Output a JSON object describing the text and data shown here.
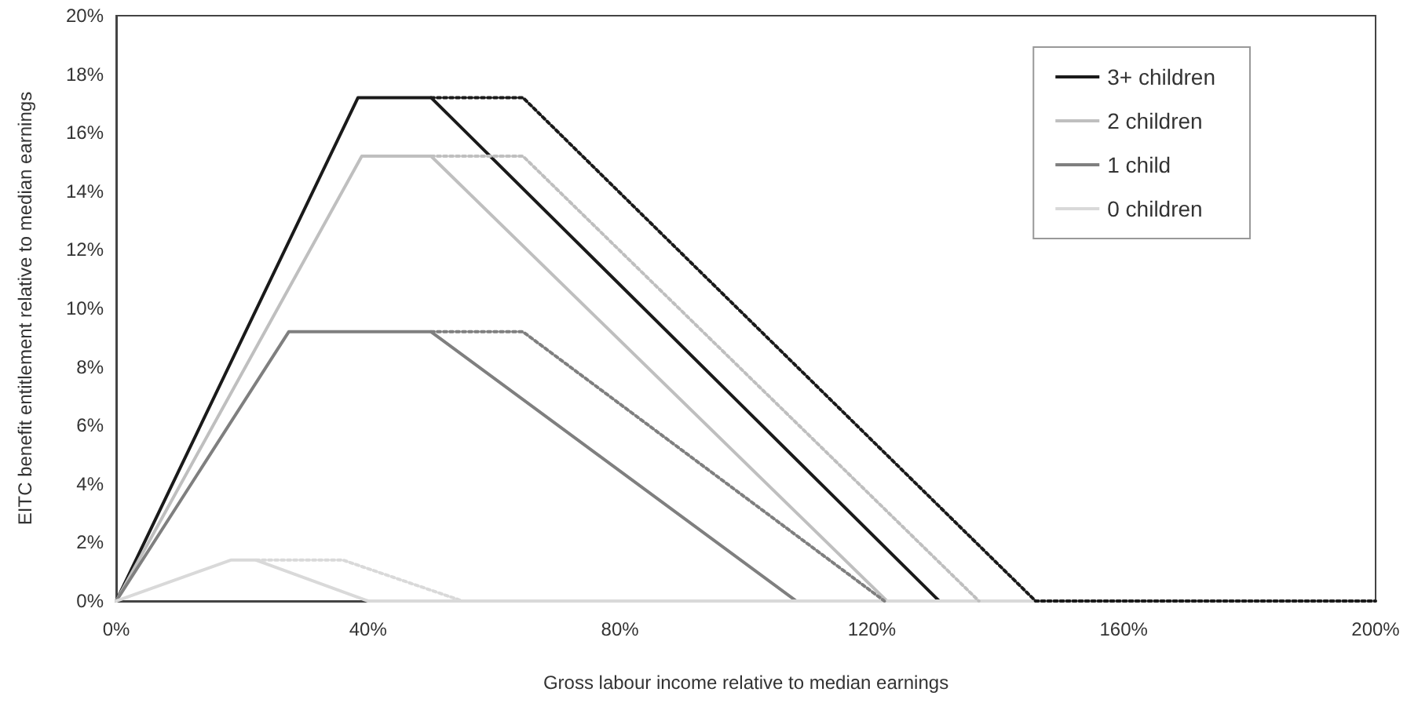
{
  "chart_data": {
    "type": "line",
    "xlabel": "Gross labour income relative to median earnings",
    "ylabel": "EITC benefit entitlement relative to median earnings",
    "xlim": [
      0,
      200
    ],
    "xticks": [
      {
        "value": 0,
        "label": "0%"
      },
      {
        "value": 40,
        "label": "40%"
      },
      {
        "value": 80,
        "label": "80%"
      },
      {
        "value": 120,
        "label": "120%"
      },
      {
        "value": 160,
        "label": "160%"
      },
      {
        "value": 200,
        "label": "200%"
      }
    ],
    "ylim": [
      0,
      20
    ],
    "yticks": [
      {
        "value": 0,
        "label": "0%"
      },
      {
        "value": 2,
        "label": "2%"
      },
      {
        "value": 4,
        "label": "4%"
      },
      {
        "value": 6,
        "label": "6%"
      },
      {
        "value": 8,
        "label": "8%"
      },
      {
        "value": 10,
        "label": "10%"
      },
      {
        "value": 12,
        "label": "12%"
      },
      {
        "value": 14,
        "label": "14%"
      },
      {
        "value": 16,
        "label": "16%"
      },
      {
        "value": 18,
        "label": "18%"
      },
      {
        "value": 20,
        "label": "20%"
      }
    ],
    "grid": false,
    "legend": "top right",
    "marker": "none",
    "line_style": "solid",
    "series": [
      {
        "name": "3+ children",
        "color": "#1a1a1a",
        "x": [
          0,
          38.4,
          50,
          130.7
        ],
        "values": [
          0,
          17.2,
          17.2,
          0
        ]
      },
      {
        "name": "2 children",
        "color": "#bfbfbf",
        "x": [
          0,
          39,
          50,
          122.4
        ],
        "values": [
          0,
          15.2,
          15.2,
          0
        ]
      },
      {
        "name": "1 child",
        "color": "#7f7f7f",
        "x": [
          0,
          27.4,
          50,
          108
        ],
        "values": [
          0,
          9.2,
          9.2,
          0
        ]
      },
      {
        "name": "0 children",
        "color": "#d9d9d9",
        "x": [
          0,
          18.2,
          22.2,
          40,
          200
        ],
        "values": [
          0,
          1.4,
          1.4,
          0,
          0
        ]
      },
      {
        "color": "#1a1a1a",
        "line_style": "dotted",
        "x": [
          50,
          64.6,
          146,
          200
        ],
        "values": [
          17.2,
          17.2,
          0,
          0
        ]
      },
      {
        "color": "#bfbfbf",
        "line_style": "dotted",
        "x": [
          50,
          64.6,
          137
        ],
        "values": [
          15.2,
          15.2,
          0
        ]
      },
      {
        "color": "#7f7f7f",
        "line_style": "dotted",
        "x": [
          50,
          64.6,
          122
        ],
        "values": [
          9.2,
          9.2,
          0
        ]
      },
      {
        "color": "#d9d9d9",
        "line_style": "dotted",
        "x": [
          22.2,
          36,
          55
        ],
        "values": [
          1.4,
          1.4,
          0
        ]
      }
    ]
  }
}
